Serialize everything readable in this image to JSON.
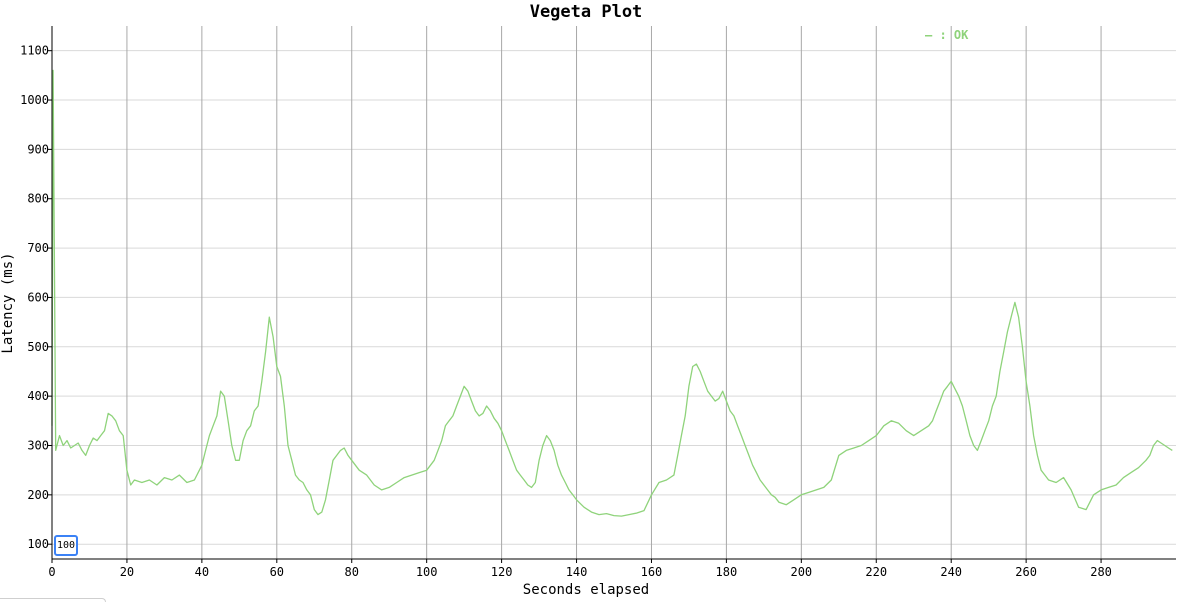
{
  "chart_data": {
    "type": "line",
    "title": "Vegeta Plot",
    "xlabel": "Seconds elapsed",
    "ylabel": "Latency (ms)",
    "xlim": [
      0,
      300
    ],
    "ylim": [
      70,
      1150
    ],
    "x_ticks": [
      "0",
      "20",
      "40",
      "60",
      "80",
      "100",
      "120",
      "140",
      "160",
      "180",
      "200",
      "220",
      "240",
      "260",
      "280"
    ],
    "y_ticks": [
      "100",
      "200",
      "300",
      "400",
      "500",
      "600",
      "700",
      "800",
      "900",
      "1000",
      "1100"
    ],
    "legend": {
      "position": "top-right",
      "label": "— : OK"
    },
    "grid": true,
    "series": [
      {
        "name": "OK",
        "color": "#8fd37b",
        "x": [
          0,
          0.3,
          1,
          2,
          3,
          4,
          5,
          6,
          7,
          8,
          9,
          10,
          11,
          12,
          13,
          14,
          15,
          16,
          17,
          18,
          19,
          20,
          21,
          22,
          24,
          26,
          28,
          30,
          32,
          34,
          36,
          38,
          40,
          41,
          42,
          43,
          44,
          45,
          46,
          47,
          48,
          49,
          50,
          51,
          52,
          53,
          54,
          55,
          56,
          57,
          58,
          59,
          60,
          61,
          62,
          63,
          64,
          65,
          66,
          67,
          68,
          69,
          70,
          71,
          72,
          73,
          74,
          75,
          76,
          77,
          78,
          79,
          80,
          82,
          84,
          86,
          88,
          90,
          92,
          94,
          96,
          98,
          100,
          102,
          104,
          105,
          106,
          107,
          108,
          109,
          110,
          111,
          112,
          113,
          114,
          115,
          116,
          117,
          118,
          119,
          120,
          121,
          122,
          123,
          124,
          125,
          126,
          127,
          128,
          129,
          130,
          131,
          132,
          133,
          134,
          135,
          136,
          137,
          138,
          139,
          140,
          142,
          144,
          146,
          148,
          150,
          152,
          154,
          156,
          158,
          160,
          162,
          164,
          166,
          167,
          168,
          169,
          170,
          171,
          172,
          173,
          174,
          175,
          176,
          177,
          178,
          179,
          180,
          181,
          182,
          183,
          184,
          185,
          186,
          187,
          188,
          189,
          190,
          191,
          192,
          193,
          194,
          196,
          198,
          200,
          202,
          204,
          206,
          208,
          210,
          212,
          214,
          216,
          218,
          220,
          222,
          224,
          226,
          228,
          230,
          232,
          234,
          235,
          236,
          237,
          238,
          239,
          240,
          241,
          242,
          243,
          244,
          245,
          246,
          247,
          248,
          249,
          250,
          251,
          252,
          253,
          254,
          255,
          256,
          257,
          258,
          259,
          260,
          261,
          262,
          263,
          264,
          265,
          266,
          268,
          270,
          272,
          274,
          276,
          278,
          280,
          282,
          284,
          286,
          288,
          290,
          292,
          293,
          294,
          295,
          296,
          297,
          298,
          299
        ],
        "y": [
          340,
          1060,
          290,
          320,
          300,
          310,
          295,
          300,
          305,
          290,
          280,
          300,
          315,
          310,
          320,
          330,
          365,
          360,
          350,
          330,
          320,
          250,
          220,
          230,
          225,
          230,
          220,
          235,
          230,
          240,
          225,
          230,
          260,
          290,
          320,
          340,
          360,
          410,
          400,
          350,
          300,
          270,
          270,
          310,
          330,
          340,
          370,
          380,
          430,
          490,
          560,
          520,
          460,
          440,
          380,
          300,
          270,
          240,
          230,
          225,
          210,
          200,
          170,
          160,
          165,
          190,
          230,
          270,
          280,
          290,
          295,
          280,
          270,
          250,
          240,
          220,
          210,
          215,
          225,
          235,
          240,
          245,
          250,
          270,
          310,
          340,
          350,
          360,
          380,
          400,
          420,
          410,
          390,
          370,
          360,
          365,
          380,
          370,
          355,
          345,
          330,
          310,
          290,
          270,
          250,
          240,
          230,
          220,
          215,
          225,
          270,
          300,
          320,
          310,
          290,
          260,
          240,
          225,
          210,
          200,
          190,
          175,
          165,
          160,
          162,
          158,
          157,
          160,
          163,
          168,
          200,
          225,
          230,
          240,
          280,
          320,
          360,
          420,
          460,
          465,
          450,
          430,
          410,
          400,
          390,
          395,
          410,
          390,
          370,
          360,
          340,
          320,
          300,
          280,
          260,
          245,
          230,
          220,
          210,
          200,
          195,
          185,
          180,
          190,
          200,
          205,
          210,
          215,
          230,
          280,
          290,
          295,
          300,
          310,
          320,
          340,
          350,
          345,
          330,
          320,
          330,
          340,
          350,
          370,
          390,
          410,
          420,
          430,
          415,
          400,
          380,
          350,
          320,
          300,
          290,
          310,
          330,
          350,
          380,
          400,
          450,
          490,
          530,
          560,
          590,
          560,
          500,
          430,
          380,
          320,
          280,
          250,
          240,
          230,
          225,
          235,
          210,
          175,
          170,
          200,
          210,
          215,
          220,
          235,
          245,
          255,
          270,
          280,
          300,
          310,
          305,
          300,
          295,
          290
        ]
      }
    ]
  }
}
